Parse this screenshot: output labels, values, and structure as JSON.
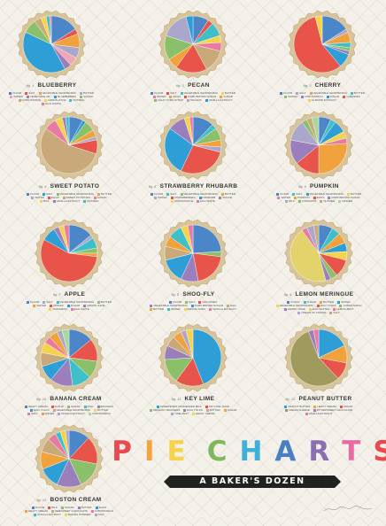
{
  "poster": {
    "title_letters": [
      "P",
      "I",
      "E",
      "C",
      "H",
      "A",
      "R",
      "T",
      "S"
    ],
    "title_colors": [
      "#e84a4f",
      "#f6a33c",
      "#f5d44a",
      "#7fb85c",
      "#3fb1d9",
      "#4a7fc4",
      "#8a6fb5",
      "#e86aa4",
      "#e84a4f"
    ],
    "subtitle": "A BAKER'S DOZEN"
  },
  "chart_data": [
    {
      "type": "pie",
      "fig": "fig. 1",
      "title": "BLUEBERRY",
      "slices": [
        {
          "label": "Flour",
          "value": 16,
          "color": "#4a86c8"
        },
        {
          "label": "Salt",
          "value": 3,
          "color": "#e8534a"
        },
        {
          "label": "Vegetable Shortening",
          "value": 8,
          "color": "#f2a23c"
        },
        {
          "label": "Butter",
          "value": 6,
          "color": "#aaa6cc"
        },
        {
          "label": "Water",
          "value": 5,
          "color": "#f0a6b6"
        },
        {
          "label": "Vegetable Oil",
          "value": 4,
          "color": "#9b7fbd"
        },
        {
          "label": "Blueberries",
          "value": 40,
          "color": "#2d9fd6"
        },
        {
          "label": "Sugar",
          "value": 8,
          "color": "#8bc06a"
        },
        {
          "label": "Corn Starch",
          "value": 4,
          "color": "#c9a97a"
        },
        {
          "label": "Lemon Juice",
          "value": 3,
          "color": "#f5d34b"
        },
        {
          "label": "Nutmeg",
          "value": 2,
          "color": "#3fbfc8"
        },
        {
          "label": "Egg White",
          "value": 1,
          "color": "#e87aa3"
        }
      ]
    },
    {
      "type": "pie",
      "fig": "fig. 2",
      "title": "PECAN",
      "slices": [
        {
          "label": "Flour",
          "value": 9,
          "color": "#4a86c8"
        },
        {
          "label": "Salt",
          "value": 3,
          "color": "#e8534a"
        },
        {
          "label": "Vegetable Shortening",
          "value": 8,
          "color": "#3fbfc8"
        },
        {
          "label": "Butter",
          "value": 4,
          "color": "#f5d34b"
        },
        {
          "label": "Water",
          "value": 5,
          "color": "#e87aa3"
        },
        {
          "label": "Eggs",
          "value": 13,
          "color": "#c9a97a"
        },
        {
          "label": "Dark Brown Sugar",
          "value": 18,
          "color": "#e8534a"
        },
        {
          "label": "Sugar",
          "value": 6,
          "color": "#f2a23c"
        },
        {
          "label": "Light Corn Syrup",
          "value": 14,
          "color": "#8bc06a"
        },
        {
          "label": "Pecans",
          "value": 16,
          "color": "#aaa6cc"
        },
        {
          "label": "Vanilla Extract",
          "value": 4,
          "color": "#2d9fd6"
        }
      ]
    },
    {
      "type": "pie",
      "fig": "fig. 3",
      "title": "CHERRY",
      "slices": [
        {
          "label": "Flour",
          "value": 16,
          "color": "#4a86c8"
        },
        {
          "label": "Salt",
          "value": 2,
          "color": "#aaa6cc"
        },
        {
          "label": "Vegetable Shortening",
          "value": 6,
          "color": "#f2a23c"
        },
        {
          "label": "Butter",
          "value": 3,
          "color": "#3fbfc8"
        },
        {
          "label": "Water",
          "value": 2,
          "color": "#8bc06a"
        },
        {
          "label": "Cornstarch",
          "value": 2,
          "color": "#9b7fbd"
        },
        {
          "label": "Sugar",
          "value": 8,
          "color": "#2d9fd6"
        },
        {
          "label": "Cherries",
          "value": 57,
          "color": "#e8534a"
        },
        {
          "label": "Almond Extract",
          "value": 4,
          "color": "#f5d34b"
        }
      ]
    },
    {
      "type": "pie",
      "fig": "fig. 4",
      "title": "SWEET POTATO",
      "slices": [
        {
          "label": "Flour",
          "value": 8,
          "color": "#4a86c8"
        },
        {
          "label": "Salt",
          "value": 2,
          "color": "#2d9fd6"
        },
        {
          "label": "Vegetable Shortening",
          "value": 6,
          "color": "#8bc06a"
        },
        {
          "label": "Butter",
          "value": 4,
          "color": "#f2a23c"
        },
        {
          "label": "Water",
          "value": 2,
          "color": "#aaa6cc"
        },
        {
          "label": "Eggs",
          "value": 8,
          "color": "#e8534a"
        },
        {
          "label": "Sweet Potatoes",
          "value": 55,
          "color": "#c9a97a"
        },
        {
          "label": "Sugar",
          "value": 7,
          "color": "#e87aa3"
        },
        {
          "label": "Milk",
          "value": 4,
          "color": "#f5d34b"
        },
        {
          "label": "Vanilla Extract",
          "value": 2,
          "color": "#9b7fbd"
        },
        {
          "label": "Nutmeg",
          "value": 2,
          "color": "#3fbfc8"
        }
      ]
    },
    {
      "type": "pie",
      "fig": "fig. 5",
      "title": "STRAWBERRY RHUBARB",
      "slices": [
        {
          "label": "Flour",
          "value": 12,
          "color": "#4a86c8"
        },
        {
          "label": "Salt",
          "value": 3,
          "color": "#3fbfc8"
        },
        {
          "label": "Vegetable Shortening",
          "value": 7,
          "color": "#8bc06a"
        },
        {
          "label": "Butter",
          "value": 4,
          "color": "#f2a23c"
        },
        {
          "label": "Water",
          "value": 3,
          "color": "#aaa6cc"
        },
        {
          "label": "Strawberries",
          "value": 28,
          "color": "#e8534a"
        },
        {
          "label": "Rhubarb",
          "value": 28,
          "color": "#2d9fd6"
        },
        {
          "label": "Sugar",
          "value": 10,
          "color": "#9b7fbd"
        },
        {
          "label": "Cornstarch",
          "value": 3,
          "color": "#f5d34b"
        },
        {
          "label": "Egg White",
          "value": 2,
          "color": "#e87aa3"
        }
      ]
    },
    {
      "type": "pie",
      "fig": "fig. 6",
      "title": "PUMPKIN",
      "slices": [
        {
          "label": "Flour",
          "value": 7,
          "color": "#4a86c8"
        },
        {
          "label": "Salt",
          "value": 3,
          "color": "#3fbfc8"
        },
        {
          "label": "Vegetable Shortening",
          "value": 7,
          "color": "#2d9fd6"
        },
        {
          "label": "Butter",
          "value": 4,
          "color": "#f5d34b"
        },
        {
          "label": "Water",
          "value": 3,
          "color": "#e87aa3"
        },
        {
          "label": "Pumpkin",
          "value": 26,
          "color": "#f2a23c"
        },
        {
          "label": "Eggs",
          "value": 14,
          "color": "#e8534a"
        },
        {
          "label": "Dark Brown Sugar",
          "value": 14,
          "color": "#9b7fbd"
        },
        {
          "label": "Milk",
          "value": 12,
          "color": "#aaa6cc"
        },
        {
          "label": "Cinnamon",
          "value": 3,
          "color": "#8bc06a"
        },
        {
          "label": "Nutmeg",
          "value": 3,
          "color": "#c9a97a"
        },
        {
          "label": "Ginger",
          "value": 4,
          "color": "#a8d8a0"
        }
      ]
    },
    {
      "type": "pie",
      "fig": "fig. 7",
      "title": "APPLE",
      "slices": [
        {
          "label": "Flour",
          "value": 14,
          "color": "#4a86c8"
        },
        {
          "label": "Salt",
          "value": 2,
          "color": "#aaa6cc"
        },
        {
          "label": "Vegetable Shortening",
          "value": 6,
          "color": "#3fbfc8"
        },
        {
          "label": "Butter",
          "value": 3,
          "color": "#8bc06a"
        },
        {
          "label": "Water",
          "value": 2,
          "color": "#f2a23c"
        },
        {
          "label": "Apples",
          "value": 56,
          "color": "#e8534a"
        },
        {
          "label": "Sugar",
          "value": 8,
          "color": "#2d9fd6"
        },
        {
          "label": "Lemon Juice",
          "value": 3,
          "color": "#9b7fbd"
        },
        {
          "label": "Cinnamon",
          "value": 3,
          "color": "#f5d34b"
        },
        {
          "label": "Egg White",
          "value": 3,
          "color": "#e87aa3"
        }
      ]
    },
    {
      "type": "pie",
      "fig": "fig. 8",
      "title": "SHOO-FLY",
      "slices": [
        {
          "label": "Flour",
          "value": 24,
          "color": "#4a86c8"
        },
        {
          "label": "Salt",
          "value": 3,
          "color": "#8bc06a"
        },
        {
          "label": "Molasses",
          "value": 20,
          "color": "#e8534a"
        },
        {
          "label": "Vegetable Shortening",
          "value": 10,
          "color": "#9b7fbd"
        },
        {
          "label": "Dark Brown Sugar",
          "value": 14,
          "color": "#2d9fd6"
        },
        {
          "label": "Egg",
          "value": 8,
          "color": "#c9a97a"
        },
        {
          "label": "Butter",
          "value": 6,
          "color": "#f2a23c"
        },
        {
          "label": "Water",
          "value": 8,
          "color": "#3fbfc8"
        },
        {
          "label": "Baking Soda",
          "value": 4,
          "color": "#f5d34b"
        },
        {
          "label": "Vanilla Extract",
          "value": 3,
          "color": "#e87aa3"
        }
      ]
    },
    {
      "type": "pie",
      "fig": "fig. 9",
      "title": "LEMON MERINGUE",
      "slices": [
        {
          "label": "Flour",
          "value": 8,
          "color": "#4a86c8"
        },
        {
          "label": "Sugar",
          "value": 5,
          "color": "#3fbfc8"
        },
        {
          "label": "Butter",
          "value": 6,
          "color": "#f2a23c"
        },
        {
          "label": "Water",
          "value": 5,
          "color": "#2d9fd6"
        },
        {
          "label": "Vegetable Shortening",
          "value": 5,
          "color": "#f5d34b"
        },
        {
          "label": "Egg Yolks",
          "value": 10,
          "color": "#e8534a"
        },
        {
          "label": "Cornstarch",
          "value": 4,
          "color": "#8bc06a"
        },
        {
          "label": "Lemon Juice",
          "value": 3,
          "color": "#9b7fbd"
        },
        {
          "label": "Egg Whites",
          "value": 44,
          "color": "#e2d36a"
        },
        {
          "label": "Lemon Zest",
          "value": 3,
          "color": "#e87aa3"
        },
        {
          "label": "Cream of Tartar",
          "value": 4,
          "color": "#aaa6cc"
        },
        {
          "label": "Salt",
          "value": 3,
          "color": "#c9a97a"
        }
      ]
    },
    {
      "type": "pie",
      "fig": "fig. 10",
      "title": "BANANA CREAM",
      "slices": [
        {
          "label": "Heavy Cream",
          "value": 14,
          "color": "#4a86c8"
        },
        {
          "label": "Flour",
          "value": 13,
          "color": "#e8534a"
        },
        {
          "label": "Sugar",
          "value": 10,
          "color": "#8bc06a"
        },
        {
          "label": "Milk",
          "value": 11,
          "color": "#3fbfc8"
        },
        {
          "label": "Bananas",
          "value": 13,
          "color": "#9b7fbd"
        },
        {
          "label": "Egg Yolks",
          "value": 9,
          "color": "#2d9fd6"
        },
        {
          "label": "Vegetable Shortening",
          "value": 8,
          "color": "#c9a97a"
        },
        {
          "label": "Butter",
          "value": 6,
          "color": "#f5d34b"
        },
        {
          "label": "Salt",
          "value": 4,
          "color": "#e87aa3"
        },
        {
          "label": "Water",
          "value": 5,
          "color": "#f2a23c"
        },
        {
          "label": "Vanilla Extract",
          "value": 3,
          "color": "#aaa6cc"
        },
        {
          "label": "Cornstarch",
          "value": 4,
          "color": "#a8d8a0"
        }
      ]
    },
    {
      "type": "pie",
      "fig": "fig. 11",
      "title": "KEY LIME",
      "slices": [
        {
          "label": "Sweetened Condensed Milk",
          "value": 44,
          "color": "#2d9fd6"
        },
        {
          "label": "Key Lime Juice",
          "value": 16,
          "color": "#e8534a"
        },
        {
          "label": "Graham Crackers",
          "value": 14,
          "color": "#8bc06a"
        },
        {
          "label": "Egg Yolks",
          "value": 8,
          "color": "#9b7fbd"
        },
        {
          "label": "Butter",
          "value": 6,
          "color": "#c9a97a"
        },
        {
          "label": "Sugar",
          "value": 5,
          "color": "#f2a23c"
        },
        {
          "label": "Lime Zest",
          "value": 3,
          "color": "#aaa6cc"
        },
        {
          "label": "Heavy Cream",
          "value": 4,
          "color": "#f5d34b"
        }
      ]
    },
    {
      "type": "pie",
      "fig": "fig. 12",
      "title": "PEANUT BUTTER",
      "slices": [
        {
          "label": "Peanut Butter",
          "value": 18,
          "color": "#2d9fd6"
        },
        {
          "label": "Heavy Cream",
          "value": 10,
          "color": "#f2a23c"
        },
        {
          "label": "Sugar",
          "value": 10,
          "color": "#e8534a"
        },
        {
          "label": "Cream Cheese",
          "value": 56,
          "color": "#a09a5c"
        },
        {
          "label": "Bittersweet Chocolate",
          "value": 3,
          "color": "#9b7fbd"
        },
        {
          "label": "Vanilla Extract",
          "value": 3,
          "color": "#e87aa3"
        }
      ]
    },
    {
      "type": "pie",
      "fig": "fig. 13",
      "title": "BOSTON CREAM",
      "slices": [
        {
          "label": "Flour",
          "value": 12,
          "color": "#4a86c8"
        },
        {
          "label": "Milk",
          "value": 16,
          "color": "#e8534a"
        },
        {
          "label": "Sugar",
          "value": 15,
          "color": "#8bc06a"
        },
        {
          "label": "Butter",
          "value": 14,
          "color": "#9b7fbd"
        },
        {
          "label": "Eggs",
          "value": 12,
          "color": "#2d9fd6"
        },
        {
          "label": "Heavy Cream",
          "value": 10,
          "color": "#f2a23c"
        },
        {
          "label": "Semisweet Chocolate",
          "value": 8,
          "color": "#c9a97a"
        },
        {
          "label": "Cornstarch",
          "value": 5,
          "color": "#e87aa3"
        },
        {
          "label": "Vanilla Extract",
          "value": 3,
          "color": "#3fbfc8"
        },
        {
          "label": "Baking Powder",
          "value": 3,
          "color": "#f5d34b"
        },
        {
          "label": "Salt",
          "value": 2,
          "color": "#aaa6cc"
        }
      ]
    }
  ]
}
